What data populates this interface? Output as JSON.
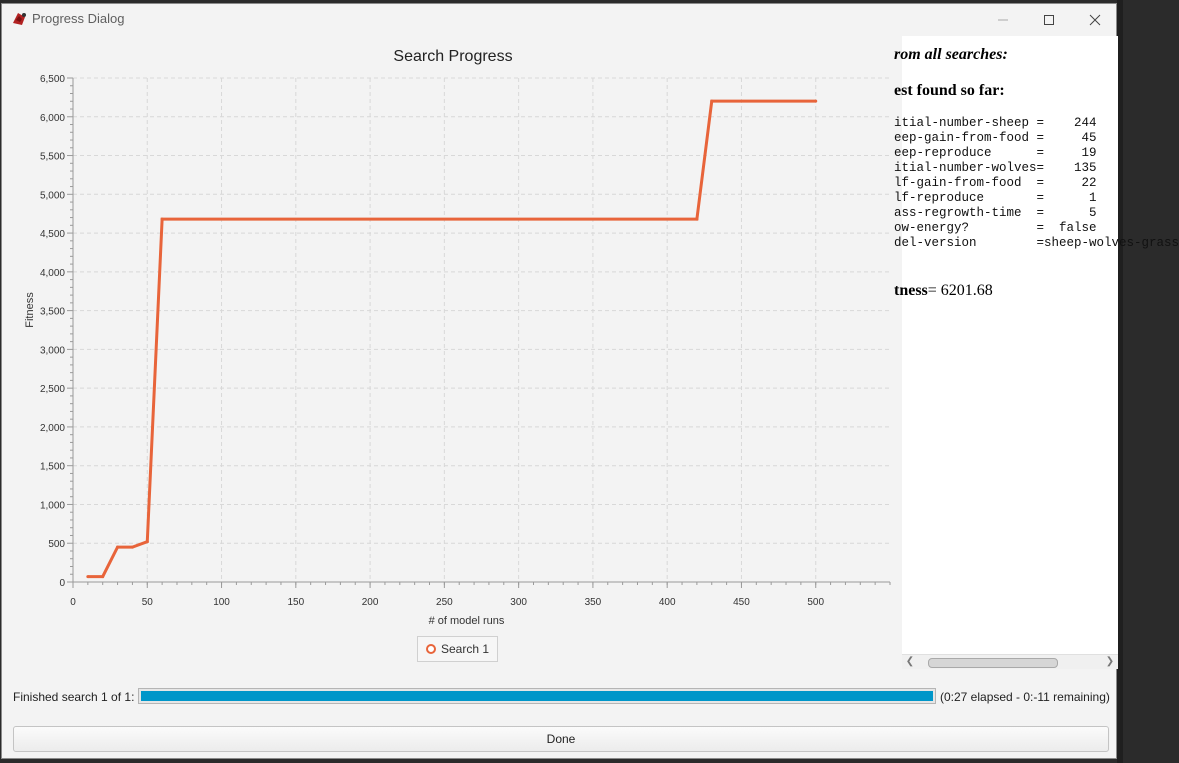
{
  "window": {
    "title": "Progress Dialog",
    "icon": "netlogo-turtle-icon"
  },
  "chart_data": {
    "type": "line",
    "title": "Search Progress",
    "xlabel": "# of model runs",
    "ylabel": "Fitness",
    "xlim": [
      0,
      550
    ],
    "ylim": [
      0,
      6500
    ],
    "xticks": [
      0,
      50,
      100,
      150,
      200,
      250,
      300,
      350,
      400,
      450,
      500
    ],
    "yticks": [
      0,
      500,
      1000,
      1500,
      2000,
      2500,
      3000,
      3500,
      4000,
      4500,
      5000,
      5500,
      6000,
      6500
    ],
    "ytick_labels": [
      "0",
      "500",
      "1,000",
      "1,500",
      "2,000",
      "2,500",
      "3,000",
      "3,500",
      "4,000",
      "4,500",
      "5,000",
      "5,500",
      "6,000",
      "6,500"
    ],
    "grid": true,
    "legend_position": "bottom",
    "series": [
      {
        "name": "Search 1",
        "color": "#e8643a",
        "x": [
          10,
          20,
          30,
          40,
          50,
          60,
          420,
          430,
          500
        ],
        "y": [
          70,
          70,
          450,
          450,
          520,
          4680,
          4680,
          6201.68,
          6201.68
        ]
      }
    ]
  },
  "results": {
    "heading_all": "rom all searches:",
    "heading_best": "est found so far:",
    "params": [
      "itial-number-sheep =    244",
      "eep-gain-from-food =     45",
      "eep-reproduce      =     19",
      "itial-number-wolves=    135",
      "lf-gain-from-food  =     22",
      "lf-reproduce       =      1",
      "ass-regrowth-time  =      5",
      "ow-energy?         =  false",
      "del-version        =sheep-wolves-grass"
    ],
    "fitness_label": "tness",
    "fitness_value": "= 6201.68"
  },
  "status": {
    "label": "Finished search 1 of 1:",
    "progress": 1.0,
    "progress_color": "#0096c9",
    "elapsed_text": "(0:27 elapsed - 0:-11 remaining)"
  },
  "buttons": {
    "done": "Done"
  }
}
